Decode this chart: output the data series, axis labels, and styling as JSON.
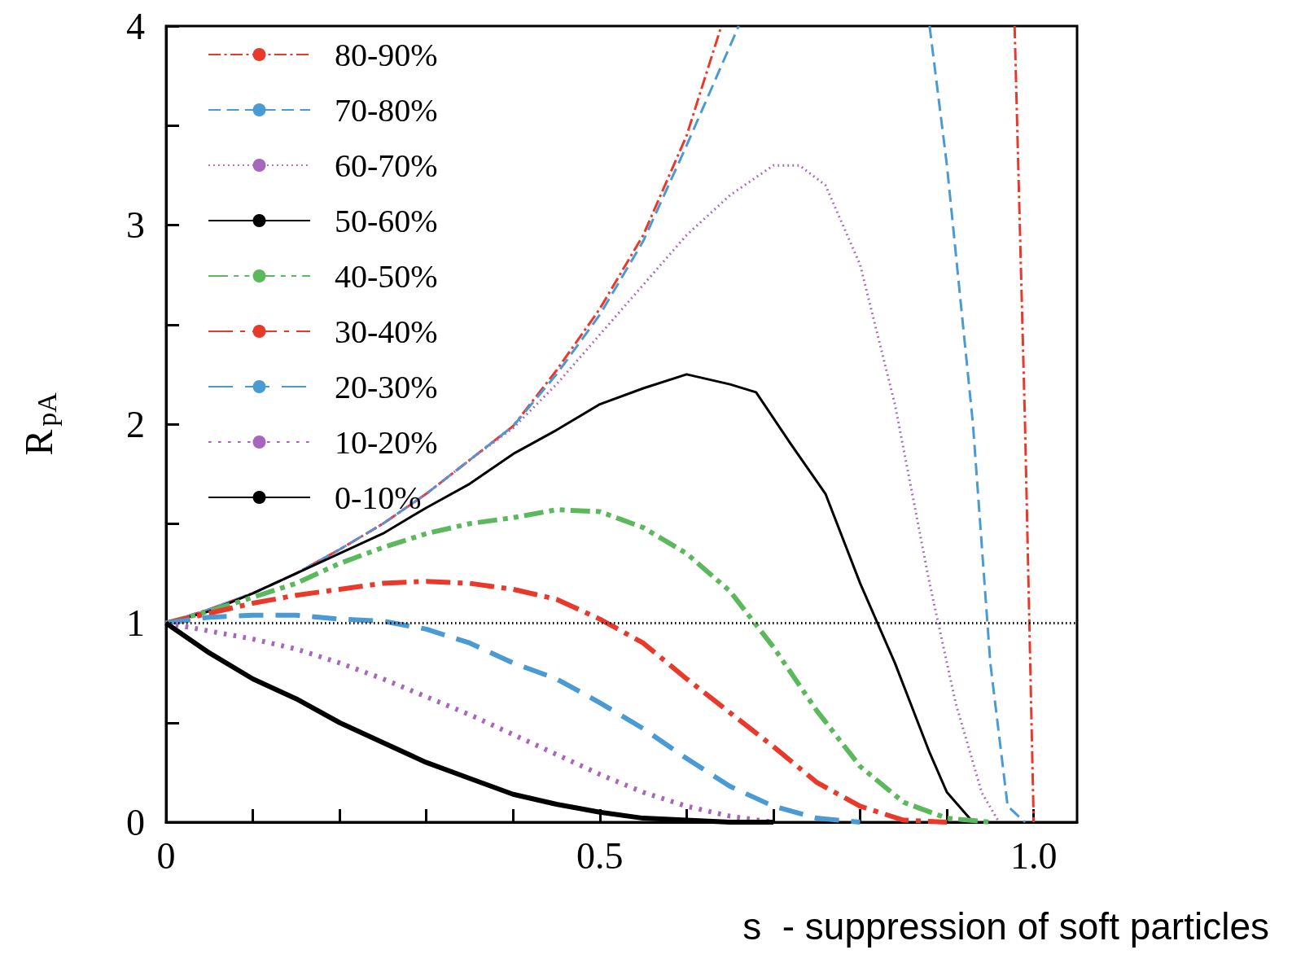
{
  "chart_data": {
    "type": "line",
    "xlabel": "s  - suppression of soft particles",
    "ylabel": "R$_{pA}$",
    "xlim": [
      0,
      1.05
    ],
    "ylim": [
      0,
      4
    ],
    "xticks": [
      0,
      {
        "value": 0.1,
        "label": null
      },
      {
        "value": 0.2,
        "label": null
      },
      {
        "value": 0.3,
        "label": null
      },
      {
        "value": 0.4,
        "label": null
      },
      0.5,
      {
        "value": 0.6,
        "label": null
      },
      {
        "value": 0.7,
        "label": null
      },
      {
        "value": 0.8,
        "label": null
      },
      {
        "value": 0.9,
        "label": null
      },
      {
        "value": 1,
        "label": "1.0"
      }
    ],
    "yticks": [
      0,
      {
        "value": 0.5,
        "label": null
      },
      1,
      {
        "value": 1.5,
        "label": null
      },
      2,
      {
        "value": 2.5,
        "label": null
      },
      3,
      {
        "value": 3.5,
        "label": null
      },
      4
    ],
    "grid": false,
    "legend": "top left",
    "marker": "none",
    "ref_lines": [
      {
        "axis": "y",
        "value": 1,
        "color": "#000000",
        "line_style": "dotted"
      }
    ],
    "series": [
      {
        "name": "80-90%",
        "color": "#e8392b",
        "line_style": "dashdot",
        "x": [
          0,
          0.05,
          0.1,
          0.15,
          0.2,
          0.25,
          0.3,
          0.35,
          0.4,
          0.45,
          0.5,
          0.55,
          0.6,
          0.64,
          null,
          0.978,
          0.99,
          1.0
        ],
        "values": [
          1,
          1.07,
          1.15,
          1.25,
          1.37,
          1.5,
          1.65,
          1.82,
          1.99,
          2.27,
          2.58,
          2.95,
          3.45,
          4,
          null,
          4,
          2,
          0
        ]
      },
      {
        "name": "70-80%",
        "color": "#4a9ad4",
        "line_style": "dashed",
        "x": [
          0,
          0.05,
          0.1,
          0.15,
          0.2,
          0.25,
          0.3,
          0.35,
          0.4,
          0.45,
          0.5,
          0.55,
          0.6,
          0.66,
          null,
          0.88,
          0.9,
          0.93,
          0.95,
          0.97,
          0.99
        ],
        "values": [
          1,
          1.07,
          1.15,
          1.25,
          1.37,
          1.5,
          1.65,
          1.82,
          1.99,
          2.25,
          2.55,
          2.92,
          3.4,
          4,
          null,
          4,
          3.3,
          2,
          0.8,
          0.08,
          0
        ]
      },
      {
        "name": "60-70%",
        "color": "#a766bd",
        "line_style": "dotted",
        "x": [
          0,
          0.05,
          0.1,
          0.15,
          0.2,
          0.25,
          0.3,
          0.35,
          0.4,
          0.45,
          0.5,
          0.55,
          0.6,
          0.65,
          0.7,
          0.73,
          0.76,
          0.8,
          0.84,
          0.88,
          0.91,
          0.94,
          0.96
        ],
        "values": [
          1,
          1.07,
          1.15,
          1.25,
          1.37,
          1.5,
          1.65,
          1.82,
          1.98,
          2.2,
          2.45,
          2.7,
          2.95,
          3.15,
          3.3,
          3.3,
          3.2,
          2.8,
          2.1,
          1.2,
          0.6,
          0.15,
          0
        ]
      },
      {
        "name": "50-60%",
        "color": "#000000",
        "line_style": "solid",
        "x": [
          0,
          0.05,
          0.1,
          0.15,
          0.2,
          0.25,
          0.3,
          0.35,
          0.4,
          0.45,
          0.5,
          0.55,
          0.6,
          0.65,
          0.68,
          0.72,
          0.76,
          0.8,
          0.84,
          0.88,
          0.9,
          0.93
        ],
        "values": [
          1,
          1.06,
          1.15,
          1.25,
          1.35,
          1.45,
          1.58,
          1.7,
          1.85,
          1.97,
          2.1,
          2.18,
          2.25,
          2.2,
          2.16,
          1.9,
          1.65,
          1.2,
          0.8,
          0.35,
          0.15,
          0
        ]
      },
      {
        "name": "40-50%",
        "color": "#5cb85c",
        "line_style": "dashdotdot",
        "x": [
          0,
          0.05,
          0.1,
          0.15,
          0.2,
          0.25,
          0.3,
          0.35,
          0.4,
          0.45,
          0.5,
          0.55,
          0.6,
          0.65,
          0.7,
          0.75,
          0.8,
          0.85,
          0.9,
          0.95
        ],
        "values": [
          1,
          1.06,
          1.13,
          1.2,
          1.3,
          1.38,
          1.45,
          1.5,
          1.53,
          1.57,
          1.56,
          1.48,
          1.35,
          1.16,
          0.88,
          0.56,
          0.28,
          0.1,
          0.02,
          0
        ]
      },
      {
        "name": "30-40%",
        "color": "#e8392b",
        "line_style": "dashdot",
        "x": [
          0,
          0.05,
          0.1,
          0.15,
          0.2,
          0.25,
          0.3,
          0.35,
          0.4,
          0.45,
          0.5,
          0.55,
          0.6,
          0.65,
          0.7,
          0.75,
          0.8,
          0.85,
          0.9
        ],
        "values": [
          1,
          1.05,
          1.1,
          1.14,
          1.17,
          1.2,
          1.21,
          1.2,
          1.17,
          1.12,
          1.02,
          0.9,
          0.72,
          0.55,
          0.38,
          0.2,
          0.08,
          0.01,
          0
        ]
      },
      {
        "name": "20-30%",
        "color": "#4a9ad4",
        "line_style": "dashed",
        "x": [
          0,
          0.05,
          0.1,
          0.15,
          0.2,
          0.25,
          0.3,
          0.35,
          0.4,
          0.45,
          0.5,
          0.55,
          0.6,
          0.65,
          0.7,
          0.75,
          0.8
        ],
        "values": [
          1,
          1.03,
          1.04,
          1.04,
          1.02,
          1.01,
          0.97,
          0.9,
          0.8,
          0.72,
          0.6,
          0.47,
          0.32,
          0.18,
          0.08,
          0.02,
          0
        ]
      },
      {
        "name": "10-20%",
        "color": "#a766bd",
        "line_style": "dotted",
        "x": [
          0,
          0.1,
          0.15,
          0.2,
          0.25,
          0.3,
          0.35,
          0.4,
          0.45,
          0.5,
          0.55,
          0.6,
          0.65,
          0.7
        ],
        "values": [
          1,
          0.92,
          0.87,
          0.8,
          0.72,
          0.63,
          0.54,
          0.44,
          0.34,
          0.24,
          0.15,
          0.08,
          0.03,
          0
        ]
      },
      {
        "name": "0-10%",
        "color": "#000000",
        "line_style": "solid",
        "x": [
          0,
          0.05,
          0.1,
          0.15,
          0.2,
          0.25,
          0.3,
          0.35,
          0.4,
          0.45,
          0.5,
          0.55,
          0.6,
          0.65,
          0.7
        ],
        "values": [
          1,
          0.85,
          0.72,
          0.62,
          0.5,
          0.4,
          0.3,
          0.22,
          0.14,
          0.09,
          0.05,
          0.02,
          0.01,
          0,
          0
        ]
      }
    ]
  }
}
